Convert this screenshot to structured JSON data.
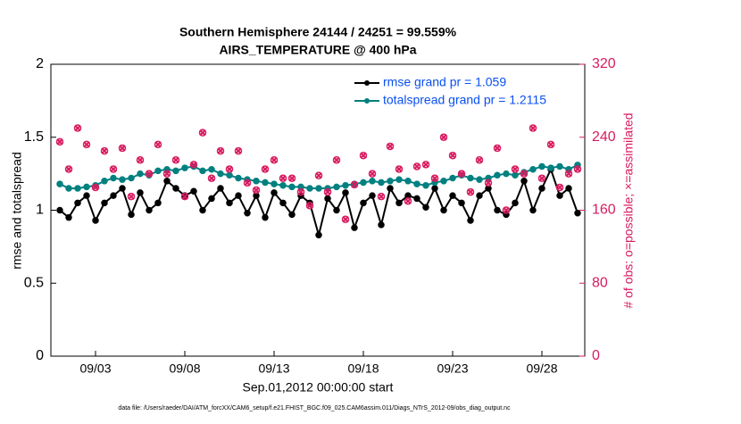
{
  "chart_data": {
    "type": "line",
    "title": "Southern Hemisphere 24144 / 24251 = 99.559%",
    "subtitle": "AIRS_TEMPERATURE @ 400 hPa",
    "xlabel": "Sep.01,2012 00:00:00 start",
    "ylabel": "rmse and totalspread",
    "y2label": "# of obs: o=possible; ×=assimilated",
    "footnote": "data file: /Users/raeder/DAI/ATM_forcXX/CAM6_setup/f.e21.FHIST_BGC.f09_025.CAM6assim.011/Diags_NTrS_2012-09/obs_diag_output.nc",
    "x": [
      1,
      1.5,
      2,
      2.5,
      3,
      3.5,
      4,
      4.5,
      5,
      5.5,
      6,
      6.5,
      7,
      7.5,
      8,
      8.5,
      9,
      9.5,
      10,
      10.5,
      11,
      11.5,
      12,
      12.5,
      13,
      13.5,
      14,
      14.5,
      15,
      15.5,
      16,
      16.5,
      17,
      17.5,
      18,
      18.5,
      19,
      19.5,
      20,
      20.5,
      21,
      21.5,
      22,
      22.5,
      23,
      23.5,
      24,
      24.5,
      25,
      25.5,
      26,
      26.5,
      27,
      27.5,
      28,
      28.5,
      29,
      29.5,
      30
    ],
    "xlim": [
      0.5,
      30.4
    ],
    "xticks": [
      {
        "value": 3,
        "label": "09/03"
      },
      {
        "value": 8,
        "label": "09/08"
      },
      {
        "value": 13,
        "label": "09/13"
      },
      {
        "value": 18,
        "label": "09/18"
      },
      {
        "value": 23,
        "label": "09/23"
      },
      {
        "value": 28,
        "label": "09/28"
      }
    ],
    "ylim": [
      0,
      2
    ],
    "yticks": [
      0,
      0.5,
      1,
      1.5,
      2
    ],
    "y2lim": [
      0,
      320
    ],
    "y2ticks": [
      0,
      80,
      160,
      240,
      320
    ],
    "legend": "upper right",
    "series": [
      {
        "name": "rmse grand pr = 1.059",
        "color": "#000000",
        "marker": "o",
        "line": true,
        "values": [
          1.0,
          0.95,
          1.05,
          1.1,
          0.93,
          1.05,
          1.1,
          1.15,
          0.97,
          1.12,
          1.0,
          1.05,
          1.2,
          1.15,
          1.1,
          1.13,
          1.0,
          1.08,
          1.15,
          1.05,
          1.1,
          0.98,
          1.1,
          0.95,
          1.12,
          1.05,
          0.97,
          1.1,
          1.05,
          0.83,
          1.08,
          1.0,
          1.12,
          0.88,
          1.05,
          1.1,
          0.9,
          1.15,
          1.05,
          1.1,
          1.08,
          1.02,
          1.15,
          1.0,
          1.1,
          1.05,
          0.93,
          1.1,
          1.15,
          1.0,
          0.97,
          1.05,
          1.2,
          1.0,
          1.15,
          1.28,
          1.1,
          1.15,
          0.98
        ]
      },
      {
        "name": "totalspread grand pr = 1.2115",
        "color": "#008080",
        "marker": "o",
        "line": true,
        "values": [
          1.18,
          1.15,
          1.15,
          1.16,
          1.17,
          1.2,
          1.22,
          1.21,
          1.22,
          1.25,
          1.24,
          1.27,
          1.28,
          1.27,
          1.29,
          1.3,
          1.27,
          1.28,
          1.25,
          1.24,
          1.22,
          1.21,
          1.2,
          1.19,
          1.18,
          1.17,
          1.16,
          1.16,
          1.15,
          1.15,
          1.15,
          1.16,
          1.17,
          1.18,
          1.19,
          1.2,
          1.19,
          1.2,
          1.21,
          1.2,
          1.18,
          1.17,
          1.19,
          1.2,
          1.22,
          1.24,
          1.22,
          1.21,
          1.22,
          1.24,
          1.25,
          1.24,
          1.26,
          1.28,
          1.3,
          1.29,
          1.3,
          1.28,
          1.31
        ]
      },
      {
        "axis": "y2",
        "color": "#d81b60",
        "marker": "o",
        "line": false,
        "values": [
          235,
          205,
          250,
          232,
          185,
          225,
          205,
          228,
          175,
          215,
          200,
          232,
          200,
          215,
          175,
          210,
          245,
          195,
          225,
          205,
          225,
          190,
          182,
          205,
          215,
          195,
          195,
          180,
          165,
          198,
          180,
          215,
          150,
          188,
          220,
          200,
          175,
          230,
          205,
          170,
          208,
          210,
          195,
          240,
          220,
          200,
          180,
          215,
          190,
          228,
          160,
          205,
          200,
          250,
          195,
          232,
          185,
          200,
          205
        ]
      },
      {
        "axis": "y2",
        "color": "#d81b60",
        "marker": "x",
        "line": false,
        "values": [
          235,
          205,
          250,
          232,
          185,
          225,
          205,
          228,
          175,
          215,
          200,
          232,
          200,
          215,
          175,
          210,
          245,
          195,
          225,
          205,
          225,
          190,
          182,
          205,
          215,
          195,
          195,
          180,
          165,
          198,
          180,
          215,
          150,
          188,
          220,
          200,
          175,
          230,
          205,
          170,
          208,
          210,
          195,
          240,
          220,
          200,
          180,
          215,
          190,
          228,
          160,
          205,
          200,
          250,
          195,
          232,
          185,
          200,
          205
        ]
      }
    ]
  }
}
